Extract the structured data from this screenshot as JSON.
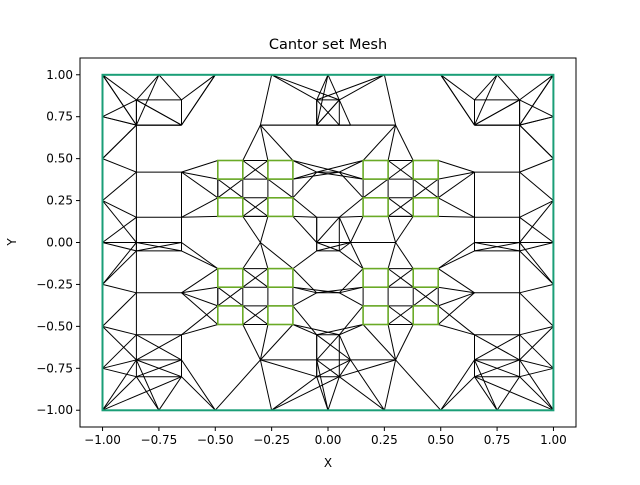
{
  "chart_data": {
    "type": "mesh",
    "title": "Cantor set Mesh",
    "xlabel": "X",
    "ylabel": "Y",
    "xlim": [
      -1.1,
      1.1
    ],
    "ylim": [
      -1.1,
      1.1
    ],
    "xticks": [
      -1.0,
      -0.75,
      -0.5,
      -0.25,
      0.0,
      0.25,
      0.5,
      0.75,
      1.0
    ],
    "xtick_labels": [
      "−1.00",
      "−0.75",
      "−0.50",
      "−0.25",
      "0.00",
      "0.25",
      "0.50",
      "0.75",
      "1.00"
    ],
    "yticks": [
      -1.0,
      -0.75,
      -0.5,
      -0.25,
      0.0,
      0.25,
      0.5,
      0.75,
      1.0
    ],
    "ytick_labels": [
      "−1.00",
      "−0.75",
      "−0.50",
      "−0.25",
      "0.00",
      "0.25",
      "0.50",
      "0.75",
      "1.00"
    ],
    "grid": false,
    "boundary": {
      "x": [
        -1,
        1
      ],
      "y": [
        -1,
        1
      ],
      "color": "#1a9e77"
    },
    "inner_squares": {
      "color": "#6aaa26",
      "x_ranges": [
        [
          -0.4889,
          -0.3778
        ],
        [
          -0.2667,
          -0.1556
        ],
        [
          0.1556,
          0.2667
        ],
        [
          0.3778,
          0.4889
        ]
      ],
      "y_ranges": [
        [
          -0.4889,
          -0.3778
        ],
        [
          -0.2667,
          -0.1556
        ],
        [
          0.1556,
          0.2667
        ],
        [
          0.3778,
          0.4889
        ]
      ]
    },
    "mesh_color": "#000000"
  }
}
